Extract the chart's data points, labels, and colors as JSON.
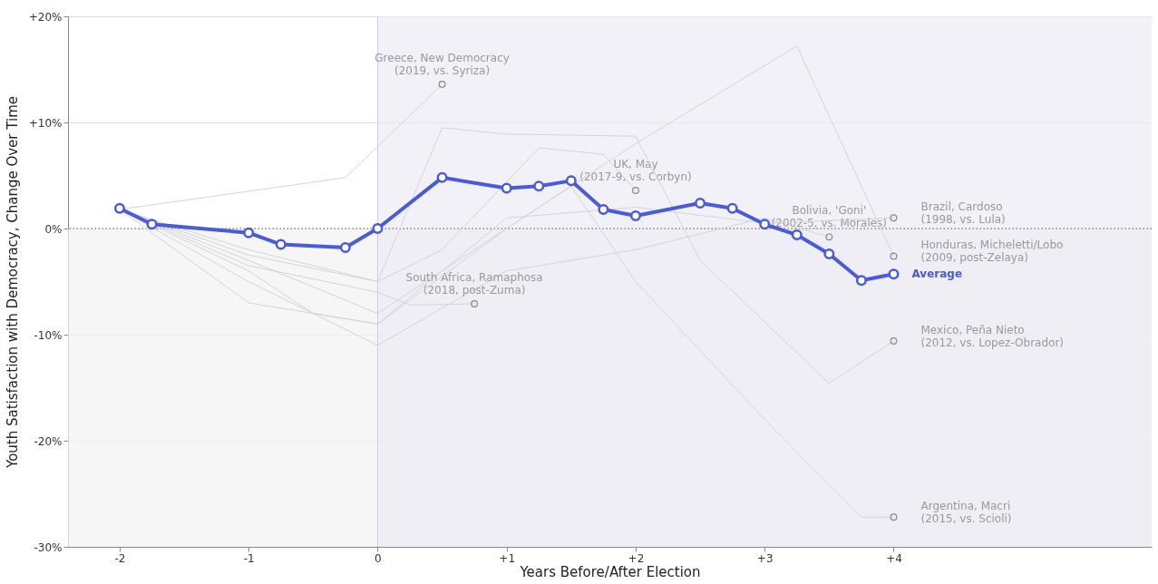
{
  "chart_data": {
    "type": "line",
    "xlabel": "Years Before/After Election",
    "ylabel": "Youth Satisfaction with Democracy, Change Over Time",
    "xlim": [
      -2.4,
      6
    ],
    "ylim": [
      -30,
      20
    ],
    "xticks": [
      {
        "value": -2,
        "label": "-2"
      },
      {
        "value": -1,
        "label": "-1"
      },
      {
        "value": 0,
        "label": "0"
      },
      {
        "value": 1,
        "label": "+1"
      },
      {
        "value": 2,
        "label": "+2"
      },
      {
        "value": 3,
        "label": "+3"
      },
      {
        "value": 4,
        "label": "+4"
      }
    ],
    "yticks": [
      {
        "value": -30,
        "label": "-30%"
      },
      {
        "value": -20,
        "label": "-20%"
      },
      {
        "value": -10,
        "label": "-10%"
      },
      {
        "value": 0,
        "label": "0%"
      },
      {
        "value": 10,
        "label": "+10%"
      },
      {
        "value": 20,
        "label": "+20%"
      }
    ],
    "grid": "y",
    "bands": [
      {
        "axis": "y",
        "from": -30,
        "to": 0,
        "color": "#f2f2f2"
      },
      {
        "axis": "x",
        "from": 0,
        "to": 6,
        "color": "#ecebf5"
      }
    ],
    "ref_lines": [
      {
        "axis": "y",
        "value": 0,
        "line_style": "dotted",
        "color": "#555555"
      },
      {
        "axis": "x",
        "value": 0,
        "line_style": "solid",
        "color": "#cfcfdc"
      }
    ],
    "series": [
      {
        "name": "Greece, New Democracy\n(2019, vs. Syriza)",
        "color": "#d4d4d4",
        "x": [
          -2,
          -0.25,
          0.5
        ],
        "values": [
          1.8,
          4.8,
          13.6
        ]
      },
      {
        "name": "UK, May\n(2017-9, vs. Corbyn)",
        "color": "#d4d4d4",
        "x": [
          -2,
          -1,
          0,
          0.5,
          1.25,
          1.75,
          2
        ],
        "values": [
          1.8,
          -2,
          -5,
          -2,
          7.6,
          7,
          3.6
        ]
      },
      {
        "name": "Bolivia, 'Goni'\n(2002-5, vs. Morales)",
        "color": "#d4d4d4",
        "x": [
          -2,
          -1,
          0,
          1,
          2,
          3,
          3.5
        ],
        "values": [
          1.8,
          -5,
          -11,
          -4,
          -2,
          1,
          -0.8
        ]
      },
      {
        "name": "Brazil, Cardoso\n(1998, vs. Lula)",
        "color": "#d4d4d4",
        "x": [
          -2,
          -1,
          -0.5,
          0,
          1,
          2,
          3,
          4
        ],
        "values": [
          1.8,
          -4,
          -8,
          -9,
          1,
          2,
          0.5,
          1
        ]
      },
      {
        "name": "Honduras, Micheletti/Lobo\n(2009, post-Zelaya)",
        "color": "#d4d4d4",
        "x": [
          -2,
          -1,
          0,
          1,
          2,
          3.25,
          4
        ],
        "values": [
          1.8,
          -3,
          -8,
          0,
          8,
          17.2,
          -2.6
        ]
      },
      {
        "name": "South Africa, Ramaphosa\n(2018, post-Zuma)",
        "color": "#d4d4d4",
        "x": [
          -2,
          -1,
          0,
          0.25,
          0.75
        ],
        "values": [
          1.8,
          -3.5,
          -6,
          -7.2,
          -7.1
        ]
      },
      {
        "name": "Mexico, Peña Nieto\n(2012, vs. Lopez-Obrador)",
        "color": "#d4d4d4",
        "x": [
          -2,
          -1,
          0,
          0.5,
          1,
          2,
          2.5,
          3.5,
          4
        ],
        "values": [
          1.8,
          -2.5,
          -5,
          9.5,
          8.9,
          8.7,
          -3,
          -14.6,
          -10.6
        ]
      },
      {
        "name": "Argentina, Macri\n(2015, vs. Scioli)",
        "color": "#d4d4d4",
        "x": [
          -2,
          -1,
          0,
          1,
          1.5,
          2,
          3,
          3.75,
          4
        ],
        "values": [
          1.8,
          -7,
          -9,
          0,
          4,
          -5,
          -18,
          -27.2,
          -27.2
        ]
      },
      {
        "name": "Average",
        "color": "#4a5ad8",
        "marker": "circle",
        "x": [
          -2,
          -1.75,
          -1,
          -0.75,
          -0.25,
          0,
          0.5,
          1,
          1.25,
          1.5,
          1.75,
          2,
          2.5,
          2.75,
          3,
          3.25,
          3.5,
          3.75,
          4
        ],
        "values": [
          1.9,
          0.4,
          -0.4,
          -1.5,
          -1.8,
          0,
          4.8,
          3.8,
          4,
          4.5,
          1.8,
          1.2,
          2.4,
          1.9,
          0.4,
          -0.6,
          -2.4,
          -4.9,
          -4.3
        ]
      }
    ]
  }
}
